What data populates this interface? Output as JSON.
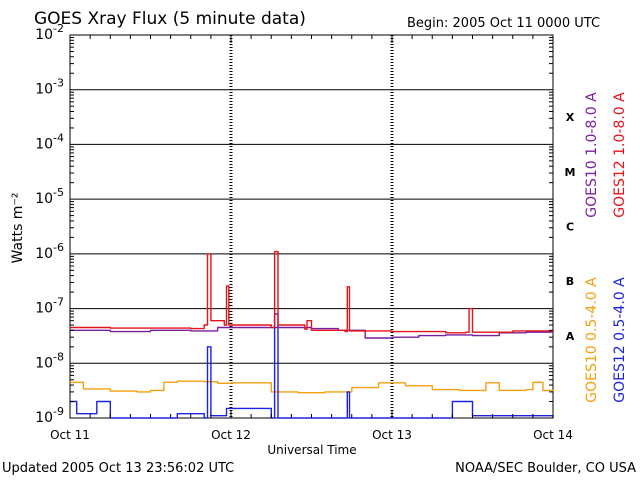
{
  "header": {
    "title": "GOES Xray Flux (5 minute data)",
    "begin": "Begin:  2005 Oct 11 0000 UTC"
  },
  "footer": {
    "updated": "Updated 2005 Oct 13 23:56:02 UTC",
    "credit": "NOAA/SEC Boulder, CO USA"
  },
  "chart_data": {
    "type": "line",
    "title": "GOES Xray Flux (5 minute data)",
    "xlabel": "Universal Time",
    "ylabel": "Watts m⁻²",
    "yscale": "log",
    "ylim": [
      1e-09,
      0.01
    ],
    "xlim": [
      "2005-10-11 00:00",
      "2005-10-14 00:00"
    ],
    "x_ticks": [
      "Oct 11",
      "Oct 12",
      "Oct 13",
      "Oct 14"
    ],
    "y_ticks": [
      {
        "base": "10",
        "exp": "-2"
      },
      {
        "base": "10",
        "exp": "-3"
      },
      {
        "base": "10",
        "exp": "-4"
      },
      {
        "base": "10",
        "exp": "-5"
      },
      {
        "base": "10",
        "exp": "-6"
      },
      {
        "base": "10",
        "exp": "-7"
      },
      {
        "base": "10",
        "exp": "-8"
      },
      {
        "base": "10",
        "exp": "-9"
      }
    ],
    "flare_classes": [
      {
        "label": "X",
        "level": 0.0001
      },
      {
        "label": "M",
        "level": 1e-05
      },
      {
        "label": "C",
        "level": 1e-06
      },
      {
        "label": "B",
        "level": 1e-07
      },
      {
        "label": "A",
        "level": 1e-08
      }
    ],
    "grid": "horizontal decades; dotted vertical day lines",
    "legend_position": "right",
    "series": [
      {
        "name": "GOES10 1.0-8.0 A",
        "color": "#7a1fa2",
        "points": [
          [
            "2005-10-11 00:00",
            4e-08
          ],
          [
            "2005-10-11 06:00",
            3.8e-08
          ],
          [
            "2005-10-11 12:00",
            4e-08
          ],
          [
            "2005-10-11 18:00",
            3.9e-08
          ],
          [
            "2005-10-11 22:00",
            4.5e-08
          ],
          [
            "2005-10-12 02:00",
            4.5e-08
          ],
          [
            "2005-10-12 08:00",
            4.5e-08
          ],
          [
            "2005-10-12 12:00",
            4.3e-08
          ],
          [
            "2005-10-12 16:00",
            4e-08
          ],
          [
            "2005-10-12 20:00",
            2.9e-08
          ],
          [
            "2005-10-13 00:00",
            3e-08
          ],
          [
            "2005-10-13 04:00",
            3.2e-08
          ],
          [
            "2005-10-13 08:00",
            3.3e-08
          ],
          [
            "2005-10-13 12:00",
            3.2e-08
          ],
          [
            "2005-10-13 16:00",
            3.6e-08
          ],
          [
            "2005-10-13 20:00",
            3.7e-08
          ],
          [
            "2005-10-13 24:00",
            3.8e-08
          ]
        ]
      },
      {
        "name": "GOES12 1.0-8.0 A",
        "color": "#e4141b",
        "points": [
          [
            "2005-10-11 00:00",
            4.5e-08
          ],
          [
            "2005-10-11 06:00",
            4.4e-08
          ],
          [
            "2005-10-11 12:00",
            4.4e-08
          ],
          [
            "2005-10-11 18:00",
            4.3e-08
          ],
          [
            "2005-10-11 20:00",
            5e-08
          ],
          [
            "2005-10-11 20:30",
            1e-06
          ],
          [
            "2005-10-11 21:00",
            6e-08
          ],
          [
            "2005-10-11 23:00",
            5e-08
          ],
          [
            "2005-10-11 23:20",
            2.6e-07
          ],
          [
            "2005-10-11 23:40",
            5e-08
          ],
          [
            "2005-10-12 06:00",
            4.5e-08
          ],
          [
            "2005-10-12 06:30",
            1.1e-06
          ],
          [
            "2005-10-12 07:00",
            5e-08
          ],
          [
            "2005-10-12 11:00",
            4.2e-08
          ],
          [
            "2005-10-12 11:20",
            6e-08
          ],
          [
            "2005-10-12 12:00",
            4e-08
          ],
          [
            "2005-10-12 17:00",
            3.8e-08
          ],
          [
            "2005-10-12 17:20",
            2.5e-07
          ],
          [
            "2005-10-12 17:40",
            3.9e-08
          ],
          [
            "2005-10-13 00:00",
            3.8e-08
          ],
          [
            "2005-10-13 08:00",
            3.6e-08
          ],
          [
            "2005-10-13 11:00",
            3.7e-08
          ],
          [
            "2005-10-13 11:30",
            1e-07
          ],
          [
            "2005-10-13 12:00",
            3.7e-08
          ],
          [
            "2005-10-13 18:00",
            3.9e-08
          ],
          [
            "2005-10-13 24:00",
            4.1e-08
          ]
        ]
      },
      {
        "name": "GOES10 0.5-4.0 A",
        "color": "#f5a00f",
        "points": [
          [
            "2005-10-11 00:00",
            4.5e-09
          ],
          [
            "2005-10-11 02:00",
            3.4e-09
          ],
          [
            "2005-10-11 06:00",
            3.1e-09
          ],
          [
            "2005-10-11 10:00",
            3e-09
          ],
          [
            "2005-10-11 12:00",
            3.2e-09
          ],
          [
            "2005-10-11 14:00",
            4.5e-09
          ],
          [
            "2005-10-11 16:00",
            4.7e-09
          ],
          [
            "2005-10-11 20:00",
            4.6e-09
          ],
          [
            "2005-10-11 22:00",
            4.3e-09
          ],
          [
            "2005-10-12 00:00",
            4.4e-09
          ],
          [
            "2005-10-12 06:00",
            3e-09
          ],
          [
            "2005-10-12 10:00",
            2.9e-09
          ],
          [
            "2005-10-12 14:00",
            3e-09
          ],
          [
            "2005-10-12 18:00",
            3.6e-09
          ],
          [
            "2005-10-12 22:00",
            4.4e-09
          ],
          [
            "2005-10-13 02:00",
            3.9e-09
          ],
          [
            "2005-10-13 06:00",
            3.3e-09
          ],
          [
            "2005-10-13 10:00",
            3.2e-09
          ],
          [
            "2005-10-13 14:00",
            4.4e-09
          ],
          [
            "2005-10-13 16:00",
            3.2e-09
          ],
          [
            "2005-10-13 20:00",
            3.3e-09
          ],
          [
            "2005-10-13 21:00",
            4.5e-09
          ],
          [
            "2005-10-13 22:30",
            3.2e-09
          ],
          [
            "2005-10-13 24:00",
            3.1e-09
          ]
        ]
      },
      {
        "name": "GOES12 0.5-4.0 A",
        "color": "#1e22e0",
        "points": [
          [
            "2005-10-11 00:00",
            2e-09
          ],
          [
            "2005-10-11 01:00",
            1.2e-09
          ],
          [
            "2005-10-11 04:00",
            2e-09
          ],
          [
            "2005-10-11 06:00",
            1e-09
          ],
          [
            "2005-10-11 16:00",
            1.2e-09
          ],
          [
            "2005-10-11 20:00",
            1e-09
          ],
          [
            "2005-10-11 20:30",
            2e-08
          ],
          [
            "2005-10-11 21:00",
            1.1e-09
          ],
          [
            "2005-10-11 23:20",
            1.5e-09
          ],
          [
            "2005-10-12 06:00",
            1e-09
          ],
          [
            "2005-10-12 06:30",
            8e-08
          ],
          [
            "2005-10-12 07:00",
            1e-09
          ],
          [
            "2005-10-12 17:20",
            3e-09
          ],
          [
            "2005-10-12 17:40",
            1e-09
          ],
          [
            "2005-10-13 08:00",
            1e-09
          ],
          [
            "2005-10-13 09:00",
            2e-09
          ],
          [
            "2005-10-13 11:30",
            2e-09
          ],
          [
            "2005-10-13 12:00",
            1.1e-09
          ],
          [
            "2005-10-13 24:00",
            1e-09
          ]
        ]
      }
    ]
  }
}
